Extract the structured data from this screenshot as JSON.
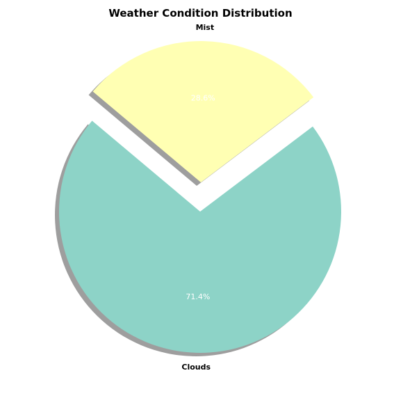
{
  "chart_data": {
    "type": "pie",
    "title": "Weather Condition Distribution",
    "slices": [
      {
        "label": "Clouds",
        "value": 71.4,
        "pct_label": "71.4%",
        "color": "#8dd3c7",
        "exploded": false
      },
      {
        "label": "Mist",
        "value": 28.6,
        "pct_label": "28.6%",
        "color": "#ffffb3",
        "exploded": true
      }
    ],
    "shadow": true,
    "legend": "none"
  }
}
